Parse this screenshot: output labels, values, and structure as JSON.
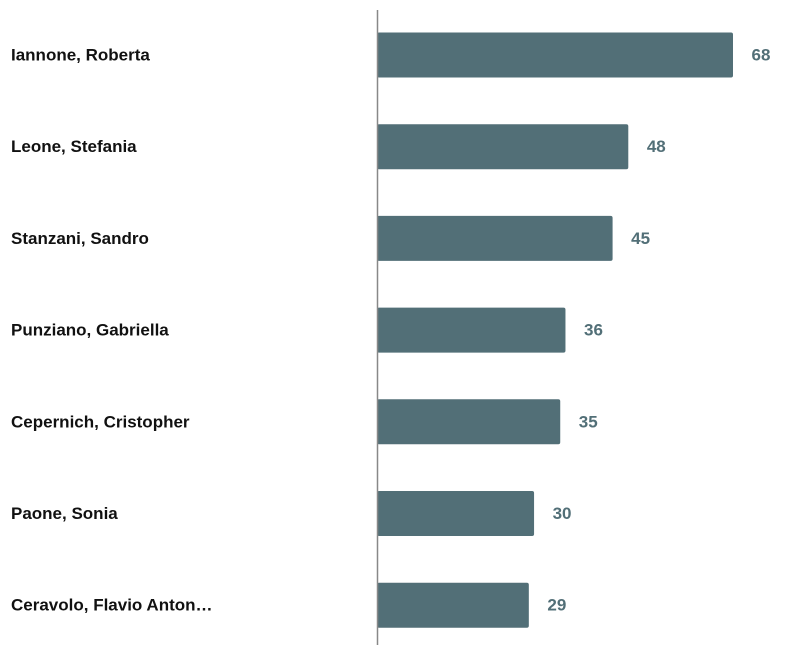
{
  "chart_data": {
    "type": "bar",
    "orientation": "horizontal",
    "categories": [
      "Iannone, Roberta",
      "Leone, Stefania",
      "Stanzani, Sandro",
      "Punziano, Gabriella",
      "Cepernich, Cristopher",
      "Paone, Sonia",
      "Ceravolo, Flavio Anton…"
    ],
    "values": [
      68,
      48,
      45,
      36,
      35,
      30,
      29
    ],
    "value_labels": [
      "68",
      "48",
      "45",
      "36",
      "35",
      "30",
      "29"
    ],
    "title": "",
    "xlabel": "",
    "ylabel": "",
    "xlim": [
      0,
      68
    ],
    "grid": false,
    "legend": "none",
    "colors": {
      "bar": "#526f77",
      "value_label": "#526f77",
      "category_label": "#111111",
      "axis": "#888888"
    }
  }
}
